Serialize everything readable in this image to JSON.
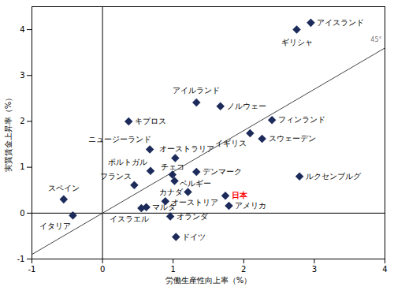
{
  "chart_data": {
    "type": "scatter",
    "x_label": "労働生産性向上率（%）",
    "y_label": "実質賃金上昇率（%）",
    "xlim": [
      -1,
      4
    ],
    "ylim": [
      -1,
      4.5
    ],
    "xticks": [
      -1,
      0,
      1,
      2,
      3,
      4
    ],
    "yticks": [
      -1,
      0,
      1,
      2,
      3,
      4
    ],
    "color": "#1c2b5a",
    "marker": "diamond",
    "points": [
      {
        "name": "アイスランド",
        "x": 2.95,
        "y": 4.15
      },
      {
        "name": "ギリシャ",
        "x": 2.75,
        "y": 4.0
      },
      {
        "name": "アイルランド",
        "x": 1.33,
        "y": 2.41
      },
      {
        "name": "ノルウェー",
        "x": 1.67,
        "y": 2.33
      },
      {
        "name": "フィンランド",
        "x": 2.4,
        "y": 2.03
      },
      {
        "name": "キプロス",
        "x": 0.37,
        "y": 2.0
      },
      {
        "name": "イギリス",
        "x": 2.09,
        "y": 1.74
      },
      {
        "name": "スウェーデン",
        "x": 2.26,
        "y": 1.62
      },
      {
        "name": "ニュージーランド",
        "x": 0.67,
        "y": 1.39
      },
      {
        "name": "オーストラリア",
        "x": 1.03,
        "y": 1.2
      },
      {
        "name": "ポルトガル",
        "x": 0.68,
        "y": 0.92
      },
      {
        "name": "チェコ",
        "x": 0.99,
        "y": 0.84
      },
      {
        "name": "デンマーク",
        "x": 1.33,
        "y": 0.9
      },
      {
        "name": "フランス",
        "x": 0.45,
        "y": 0.61
      },
      {
        "name": "ベルギー",
        "x": 1.02,
        "y": 0.7
      },
      {
        "name": "ルクセンブルグ",
        "x": 2.79,
        "y": 0.8
      },
      {
        "name": "スペイン",
        "x": -0.55,
        "y": 0.3
      },
      {
        "name": "イタリア",
        "x": -0.42,
        "y": -0.05
      },
      {
        "name": "カナダ",
        "x": 1.21,
        "y": 0.46
      },
      {
        "name": "日本",
        "x": 1.74,
        "y": 0.38,
        "color": "#ff0000"
      },
      {
        "name": "オーストリア",
        "x": 0.89,
        "y": 0.26
      },
      {
        "name": "アメリカ",
        "x": 1.79,
        "y": 0.16
      },
      {
        "name": "イスラエル",
        "x": 0.55,
        "y": 0.11
      },
      {
        "name": "マルタ",
        "x": 0.62,
        "y": 0.13
      },
      {
        "name": "オランダ",
        "x": 0.96,
        "y": -0.07
      },
      {
        "name": "ドイツ",
        "x": 1.04,
        "y": -0.52
      }
    ],
    "reference_line": {
      "x": [
        -1,
        4
      ],
      "y": [
        -0.9,
        3.6
      ],
      "label": "45°"
    }
  }
}
